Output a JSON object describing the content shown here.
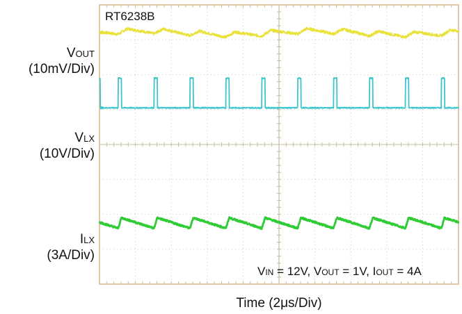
{
  "chart_data": {
    "type": "line",
    "title": "RT6238B",
    "xlabel": "Time (2μs/Div)",
    "x_scale": "2μs/Div",
    "xlim_div": [
      0,
      10
    ],
    "ylim_div": [
      0,
      8
    ],
    "grid": true,
    "annotation": {
      "vin_main": "V",
      "vin_sub": "IN",
      "vin_val": " = 12V, ",
      "vout_main": "V",
      "vout_sub": "OUT",
      "vout_val": " = 1V, ",
      "iout_main": "I",
      "iout_sub": "OUT",
      "iout_val": " = 4A"
    },
    "switching_period_us": 2.0,
    "on_time_us": 0.18,
    "series": [
      {
        "name": "VOUT",
        "label_main": "V",
        "label_sub": "OUT",
        "scale": "(10mV/Div)",
        "color": "#e8e23a",
        "waveform": "ripple",
        "baseline_div": 7.2,
        "ripple_div": 0.15
      },
      {
        "name": "VLX",
        "label_main": "V",
        "label_sub": "LX",
        "scale": "(10V/Div)",
        "color": "#3cc6cc",
        "waveform": "pulse",
        "baseline_div": 5.05,
        "pulse_div": 0.85
      },
      {
        "name": "ILX",
        "label_main": "I",
        "label_sub": "LX",
        "scale": "(3A/Div)",
        "color": "#2fcc35",
        "waveform": "sawtooth",
        "baseline_div": 1.75,
        "ripple_div": 0.3
      }
    ]
  }
}
